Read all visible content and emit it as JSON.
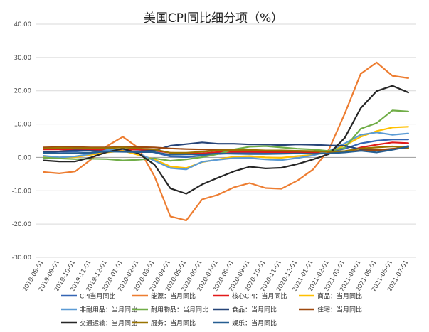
{
  "chart_data": {
    "type": "line",
    "title": "美国CPI同比细分项（%）",
    "ylim": [
      -30,
      40
    ],
    "yticks": [
      "40.00",
      "30.00",
      "20.00",
      "10.00",
      "0.00",
      "-10.00",
      "-20.00",
      "-30.00"
    ],
    "ytick_values": [
      40,
      30,
      20,
      10,
      0,
      -10,
      -20,
      -30
    ],
    "x": [
      "2019-08-01",
      "2019-09-01",
      "2019-10-01",
      "2019-11-01",
      "2019-12-01",
      "2020-01-01",
      "2020-02-01",
      "2020-03-01",
      "2020-04-01",
      "2020-05-01",
      "2020-06-01",
      "2020-07-01",
      "2020-08-01",
      "2020-09-01",
      "2020-10-01",
      "2020-11-01",
      "2020-12-01",
      "2021-01-01",
      "2021-02-01",
      "2021-03-01",
      "2021-04-01",
      "2021-05-01",
      "2021-06-01",
      "2021-07-01"
    ],
    "grid": true,
    "legend_position": "bottom",
    "series": [
      {
        "name": "CPI当月同比",
        "color": "#3465b4",
        "values": [
          1.7,
          1.7,
          1.8,
          2.1,
          2.3,
          2.5,
          2.3,
          1.5,
          0.3,
          0.1,
          0.6,
          1.0,
          1.3,
          1.4,
          1.2,
          1.2,
          1.4,
          1.4,
          1.7,
          2.6,
          4.2,
          5.0,
          5.4,
          5.4
        ]
      },
      {
        "name": "能源：当月同比",
        "color": "#ed7d31",
        "values": [
          -4.4,
          -4.8,
          -4.2,
          -0.6,
          3.4,
          6.2,
          2.8,
          -5.7,
          -17.7,
          -18.9,
          -12.6,
          -11.2,
          -9.0,
          -7.7,
          -9.2,
          -9.4,
          -7.0,
          -3.6,
          2.4,
          13.2,
          25.1,
          28.5,
          24.5,
          23.8
        ]
      },
      {
        "name": "核心CPI：当月同比",
        "color": "#e21a1a",
        "values": [
          2.4,
          2.4,
          2.3,
          2.3,
          2.3,
          2.3,
          2.4,
          2.1,
          1.4,
          1.2,
          1.2,
          1.6,
          1.7,
          1.7,
          1.6,
          1.6,
          1.6,
          1.4,
          1.3,
          1.6,
          3.0,
          3.8,
          4.5,
          4.3
        ]
      },
      {
        "name": "商品：当月同比",
        "color": "#ffc000",
        "values": [
          0.3,
          0.0,
          0.1,
          0.8,
          1.5,
          2.0,
          0.7,
          -0.6,
          -2.7,
          -3.2,
          -1.4,
          -0.6,
          0.2,
          0.4,
          0.0,
          -0.1,
          0.4,
          0.7,
          1.8,
          3.6,
          6.2,
          7.9,
          9.0,
          9.2
        ]
      },
      {
        "name": "非耐用品：当月同比",
        "color": "#5b9bd5",
        "values": [
          0.5,
          0.0,
          0.3,
          1.1,
          2.2,
          2.5,
          1.2,
          -1.0,
          -3.2,
          -3.6,
          -1.3,
          -0.7,
          -0.2,
          -0.2,
          -0.6,
          -0.8,
          -0.2,
          0.6,
          1.9,
          4.2,
          6.8,
          7.5,
          6.8,
          7.2
        ]
      },
      {
        "name": "耐用物品：当月同比",
        "color": "#70ad47",
        "values": [
          -0.1,
          -0.3,
          -0.5,
          -0.4,
          -0.5,
          -0.9,
          -0.7,
          -0.3,
          -1.0,
          -0.6,
          0.1,
          1.0,
          2.4,
          3.2,
          3.4,
          3.0,
          2.6,
          2.4,
          1.9,
          2.9,
          8.6,
          10.3,
          14.1,
          13.8
        ]
      },
      {
        "name": "食品：当月同比",
        "color": "#264478",
        "values": [
          1.7,
          1.8,
          2.1,
          2.0,
          1.8,
          1.8,
          1.8,
          2.1,
          3.5,
          4.0,
          4.5,
          4.1,
          4.1,
          3.9,
          3.9,
          3.7,
          3.9,
          3.8,
          3.6,
          3.5,
          2.4,
          2.2,
          2.4,
          3.4
        ]
      },
      {
        "name": "住宅：当月同比",
        "color": "#9e480e",
        "values": [
          3.0,
          3.1,
          3.1,
          3.0,
          3.0,
          3.1,
          3.1,
          3.0,
          2.7,
          2.5,
          2.4,
          2.2,
          2.2,
          2.1,
          2.0,
          1.9,
          1.9,
          1.8,
          1.7,
          1.7,
          2.1,
          2.2,
          2.6,
          2.8
        ]
      },
      {
        "name": "交通运输：当月同比",
        "color": "#262626",
        "values": [
          -0.9,
          -1.2,
          -1.2,
          0.0,
          1.6,
          2.6,
          1.2,
          -2.2,
          -9.3,
          -10.9,
          -8.1,
          -6.1,
          -4.2,
          -2.8,
          -3.3,
          -3.1,
          -2.0,
          -0.6,
          1.0,
          5.9,
          14.8,
          19.9,
          21.5,
          19.5
        ]
      },
      {
        "name": "服务：当月同比",
        "color": "#997300",
        "values": [
          2.7,
          2.9,
          2.8,
          2.8,
          2.8,
          3.0,
          2.7,
          2.4,
          1.4,
          1.4,
          1.7,
          2.1,
          2.2,
          2.3,
          2.1,
          2.1,
          2.0,
          1.9,
          1.7,
          1.9,
          2.7,
          3.0,
          3.3,
          2.9
        ]
      },
      {
        "name": "娱乐：当月同比",
        "color": "#255e91",
        "values": [
          1.4,
          1.2,
          1.3,
          1.4,
          1.8,
          1.7,
          1.6,
          1.6,
          0.8,
          0.9,
          0.9,
          1.2,
          1.1,
          1.0,
          1.0,
          1.1,
          1.2,
          1.1,
          1.2,
          1.5,
          2.0,
          1.5,
          2.3,
          3.2
        ]
      }
    ]
  }
}
